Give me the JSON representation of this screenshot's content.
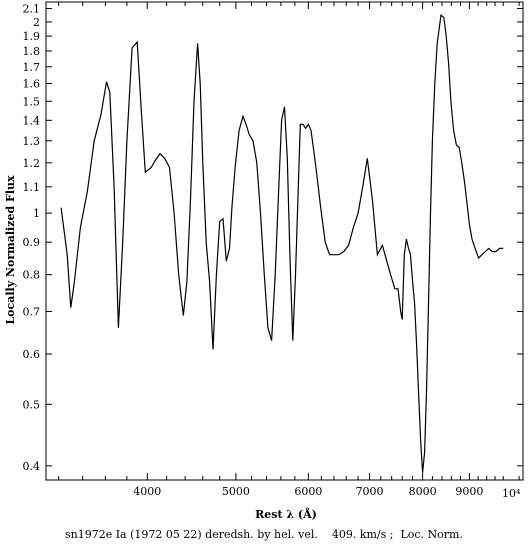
{
  "chart_data": {
    "type": "line",
    "title": "",
    "xlabel": "Rest λ (Å)",
    "ylabel": "Locally Normalized Flux",
    "caption": "sn1972e Ia (1972 05 22) deredsh. by hel. vel.    409. km/s ;  Loc. Norm.",
    "x_scale": "log",
    "y_scale": "log",
    "xlim": [
      3100,
      10300
    ],
    "ylim": [
      0.38,
      2.15
    ],
    "x_ticks": [
      4000,
      5000,
      6000,
      7000,
      8000,
      9000
    ],
    "x_tick_labels": [
      "4000",
      "5000",
      "6000",
      "7000",
      "8000",
      "9000"
    ],
    "x_exponent_label": "10⁴",
    "y_ticks": [
      0.4,
      0.5,
      0.6,
      0.7,
      0.8,
      0.9,
      1,
      1.1,
      1.2,
      1.3,
      1.4,
      1.5,
      1.6,
      1.7,
      1.8,
      1.9,
      2,
      2.1
    ],
    "y_tick_labels": [
      "0.4",
      "0.5",
      "0.6",
      "0.7",
      "0.8",
      "0.9",
      "1",
      "1.1",
      "1.2",
      "1.3",
      "1.4",
      "1.5",
      "1.6",
      "1.7",
      "1.8",
      "1.9",
      "2",
      "2.1"
    ],
    "grid": false,
    "line_color": "#000000",
    "series": [
      {
        "x": [
          3220,
          3270,
          3300,
          3330,
          3380,
          3440,
          3500,
          3560,
          3610,
          3640,
          3680,
          3720,
          3760,
          3800,
          3850,
          3900,
          3940,
          3980,
          4010,
          4040,
          4080,
          4130,
          4180,
          4230,
          4280,
          4330,
          4380,
          4420,
          4460,
          4500,
          4540,
          4570,
          4600,
          4640,
          4680,
          4720,
          4760,
          4800,
          4840,
          4880,
          4920,
          4950,
          4990,
          5040,
          5090,
          5130,
          5170,
          5220,
          5270,
          5320,
          5370,
          5420,
          5470,
          5520,
          5570,
          5610,
          5650,
          5690,
          5730,
          5770,
          5810,
          5850,
          5880,
          5920,
          5960,
          6000,
          6040,
          6080,
          6130,
          6190,
          6260,
          6330,
          6400,
          6480,
          6560,
          6640,
          6720,
          6800,
          6880,
          6960,
          7050,
          7140,
          7230,
          7310,
          7380,
          7420,
          7460,
          7520,
          7570,
          7600,
          7640,
          7680,
          7720,
          7760,
          7800,
          7840,
          7880,
          7920,
          7960,
          8000,
          8040,
          8080,
          8120,
          8160,
          8200,
          8250,
          8300,
          8380,
          8440,
          8490,
          8540,
          8590,
          8650,
          8710,
          8770,
          8830,
          8890,
          8950,
          9000,
          9060,
          9130,
          9210,
          9290,
          9370,
          9450,
          9530,
          9620,
          9710,
          9800
        ],
        "y": [
          1.02,
          0.86,
          0.71,
          0.78,
          0.95,
          1.08,
          1.3,
          1.43,
          1.61,
          1.55,
          1.1,
          0.66,
          0.9,
          1.3,
          1.82,
          1.86,
          1.45,
          1.16,
          1.17,
          1.18,
          1.21,
          1.24,
          1.22,
          1.18,
          1.0,
          0.8,
          0.69,
          0.78,
          1.05,
          1.5,
          1.85,
          1.6,
          1.2,
          0.9,
          0.78,
          0.61,
          0.8,
          0.97,
          0.98,
          0.84,
          0.88,
          1.02,
          1.18,
          1.35,
          1.42,
          1.38,
          1.33,
          1.3,
          1.2,
          1.0,
          0.8,
          0.66,
          0.63,
          0.8,
          1.1,
          1.4,
          1.47,
          1.22,
          0.85,
          0.63,
          0.8,
          1.1,
          1.38,
          1.38,
          1.36,
          1.38,
          1.35,
          1.26,
          1.15,
          1.02,
          0.9,
          0.86,
          0.86,
          0.86,
          0.87,
          0.89,
          0.95,
          1.0,
          1.1,
          1.22,
          1.05,
          0.86,
          0.89,
          0.84,
          0.8,
          0.78,
          0.76,
          0.76,
          0.7,
          0.68,
          0.86,
          0.91,
          0.88,
          0.86,
          0.78,
          0.72,
          0.62,
          0.52,
          0.44,
          0.39,
          0.42,
          0.53,
          0.72,
          1.0,
          1.3,
          1.6,
          1.85,
          2.05,
          2.03,
          1.9,
          1.72,
          1.5,
          1.35,
          1.28,
          1.27,
          1.2,
          1.12,
          1.03,
          0.96,
          0.91,
          0.88,
          0.85,
          0.86,
          0.87,
          0.88,
          0.87,
          0.87,
          0.88,
          0.88
        ]
      }
    ]
  }
}
